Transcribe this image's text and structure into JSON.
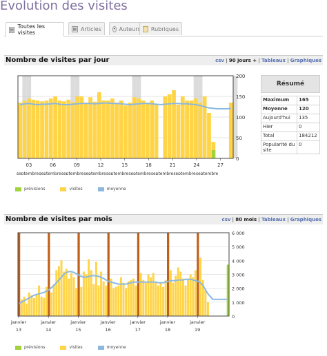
{
  "page_title": "Évolution des visites",
  "tabs": [
    {
      "label": "Toutes les visites",
      "icon": "all-visits-icon"
    },
    {
      "label": "Articles",
      "icon": "article-icon"
    },
    {
      "label": "Auteurs",
      "icon": "author-icon"
    },
    {
      "label": "Rubriques",
      "icon": "folder-icon"
    }
  ],
  "daily": {
    "title": "Nombre de visites par jour",
    "links": {
      "csv": "csv",
      "period": "90 jours +",
      "tables": "Tableaux",
      "graphics": "Graphiques",
      "sep": "|"
    },
    "legend": {
      "forecast": "prévisions",
      "visits": "visites",
      "average": "moyenne"
    },
    "summary": {
      "title": "Résumé",
      "rows": [
        {
          "label": "Maximum",
          "value": "165",
          "bold": true
        },
        {
          "label": "Moyenne",
          "value": "120",
          "bold": true
        },
        {
          "label": "Aujourd'hui",
          "value": "135",
          "bold": false
        },
        {
          "label": "Hier",
          "value": "0",
          "bold": false
        },
        {
          "label": "Total",
          "value": "184212",
          "bold": false
        },
        {
          "label": "Popularité du site",
          "value": "0",
          "bold": false
        }
      ]
    }
  },
  "monthly": {
    "title": "Nombre de visites par mois",
    "links": {
      "csv": "csv",
      "period": "80 mois",
      "tables": "Tableaux",
      "graphics": "Graphiques",
      "sep": "|"
    },
    "legend": {
      "forecast": "prévisions",
      "visits": "visites",
      "average": "moyenne"
    }
  },
  "colors": {
    "visits": "#ffd447",
    "forecast": "#a3d33a",
    "average": "#8ab8e0",
    "weekend": "#dcdcdc",
    "year_marker": "#c06018",
    "title": "#7f6f9f",
    "link": "#5570b0"
  },
  "chart_data": [
    {
      "type": "bar",
      "ylim": [
        0,
        200
      ],
      "yticks": [
        "0",
        "50",
        "100",
        "150",
        "200"
      ],
      "xtick_days": [
        "03",
        "06",
        "09",
        "12",
        "15",
        "18",
        "21",
        "24",
        "27"
      ],
      "xtick_month": "septembre",
      "series": [
        {
          "name": "visites",
          "values": [
            135,
            140,
            145,
            142,
            140,
            138,
            140,
            145,
            150,
            140,
            138,
            142,
            136,
            150,
            150,
            135,
            148,
            137,
            160,
            140,
            140,
            145,
            135,
            140,
            128,
            135,
            148,
            145,
            140,
            135,
            140,
            130,
            0,
            150,
            155,
            165,
            130,
            150,
            140,
            140,
            145,
            135,
            150,
            110,
            40,
            0,
            0,
            0,
            135
          ]
        },
        {
          "name": "prévisions",
          "values": [
            0,
            0,
            0,
            0,
            0,
            0,
            0,
            0,
            0,
            0,
            0,
            0,
            0,
            0,
            0,
            0,
            0,
            0,
            0,
            0,
            0,
            0,
            0,
            0,
            0,
            0,
            0,
            0,
            0,
            0,
            0,
            0,
            0,
            0,
            0,
            0,
            0,
            0,
            0,
            0,
            0,
            0,
            0,
            0,
            20,
            0,
            0,
            0,
            0
          ]
        },
        {
          "name": "moyenne",
          "values": [
            130,
            132,
            133,
            131,
            130,
            131,
            131,
            132,
            133,
            131,
            130,
            130,
            131,
            132,
            133,
            133,
            133,
            132,
            133,
            134,
            134,
            133,
            133,
            132,
            131,
            130,
            131,
            132,
            133,
            133,
            132,
            131,
            130,
            131,
            132,
            133,
            133,
            132,
            132,
            131,
            130,
            128,
            125,
            122,
            121,
            120,
            120,
            120,
            121
          ]
        }
      ],
      "weekend_indices": [
        1,
        2,
        12,
        13,
        26,
        27,
        40,
        41,
        49
      ]
    },
    {
      "type": "bar",
      "ylim": [
        0,
        6000
      ],
      "yticks": [
        "0",
        "1 000",
        "2 000",
        "3 000",
        "4 000",
        "5 000",
        "6 000"
      ],
      "xtick_top": [
        "janvier",
        "janvier",
        "janvier",
        "janvier",
        "janvier",
        "janvier",
        "janvier"
      ],
      "xtick_bottom": [
        "13",
        "14",
        "15",
        "16",
        "17",
        "18",
        "19"
      ],
      "series": [
        {
          "name": "visites",
          "values": [
            700,
            1200,
            1400,
            900,
            1700,
            1500,
            1300,
            1600,
            2200,
            1400,
            1300,
            2100,
            4800,
            1700,
            2300,
            3300,
            3600,
            4000,
            3200,
            3400,
            2700,
            3100,
            2800,
            2000,
            2600,
            2100,
            3200,
            3000,
            4100,
            3300,
            2300,
            3900,
            2200,
            3200,
            2500,
            2200,
            1900,
            2700,
            2000,
            2100,
            2200,
            2800,
            2400,
            2000,
            2500,
            2600,
            2700,
            2200,
            3300,
            3100,
            2600,
            2400,
            3000,
            2800,
            3100,
            2400,
            2200,
            2400,
            2100,
            2600,
            3000,
            3300,
            2400,
            2900,
            3500,
            3200,
            2700,
            2200,
            2700,
            3000,
            2800,
            3300,
            3700,
            4200,
            2600,
            1900,
            1000,
            0,
            0,
            0,
            0,
            0,
            0,
            0,
            0
          ]
        },
        {
          "name": "prévisions",
          "values": [
            0,
            0,
            0,
            0,
            0,
            0,
            0,
            0,
            0,
            0,
            0,
            0,
            0,
            0,
            0,
            0,
            0,
            0,
            0,
            0,
            0,
            0,
            0,
            0,
            0,
            0,
            0,
            0,
            0,
            0,
            0,
            0,
            0,
            0,
            0,
            0,
            0,
            0,
            0,
            0,
            0,
            0,
            0,
            0,
            0,
            0,
            0,
            0,
            0,
            0,
            0,
            0,
            0,
            0,
            0,
            0,
            0,
            0,
            0,
            0,
            0,
            0,
            0,
            0,
            0,
            0,
            0,
            0,
            0,
            0,
            0,
            0,
            0,
            0,
            0,
            0,
            0,
            0,
            0,
            0,
            0,
            0,
            0,
            0,
            3700
          ]
        },
        {
          "name": "moyenne",
          "values": [
            900,
            1000,
            1100,
            1200,
            1300,
            1400,
            1500,
            1550,
            1600,
            1650,
            1700,
            1800,
            1900,
            2050,
            2200,
            2400,
            2600,
            2800,
            3000,
            3150,
            3200,
            3200,
            3150,
            3050,
            2950,
            2850,
            2800,
            2800,
            2850,
            2900,
            2900,
            2900,
            2850,
            2800,
            2700,
            2600,
            2500,
            2450,
            2400,
            2350,
            2300,
            2300,
            2300,
            2300,
            2350,
            2400,
            2450,
            2450,
            2450,
            2450,
            2450,
            2450,
            2450,
            2450,
            2450,
            2450,
            2400,
            2400,
            2400,
            2450,
            2500,
            2550,
            2550,
            2550,
            2600,
            2600,
            2600,
            2650,
            2650,
            2650,
            2600,
            2550,
            2500,
            2400,
            2200,
            1900,
            1600,
            1400,
            1200,
            1200,
            1200,
            1200,
            1200,
            1200,
            1200
          ]
        }
      ],
      "year_markers": [
        0,
        12,
        24,
        36,
        48,
        60,
        72
      ]
    }
  ]
}
